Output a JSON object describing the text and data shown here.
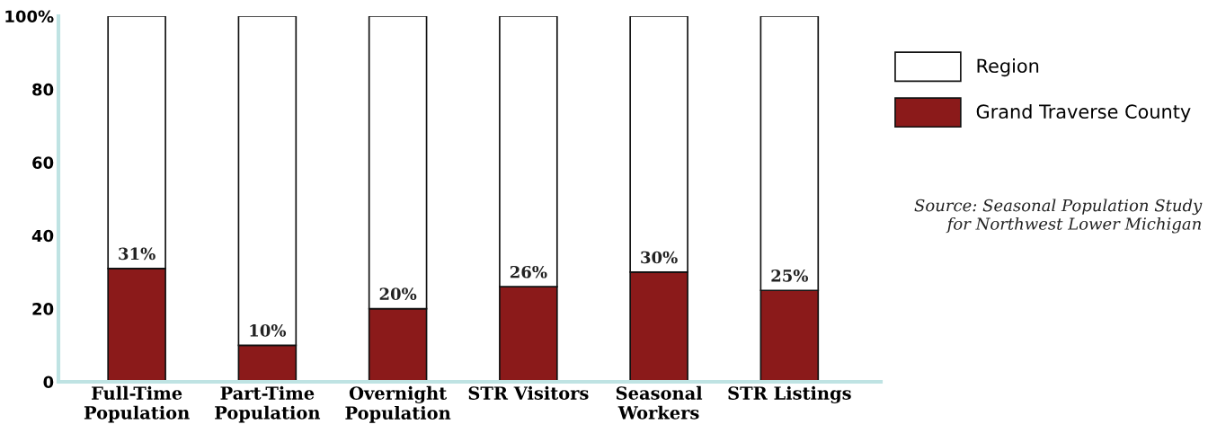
{
  "chart_data": {
    "type": "bar",
    "stacked": true,
    "categories": [
      "Full-Time\nPopulation",
      "Part-Time\nPopulation",
      "Overnight\nPopulation",
      "STR Visitors",
      "Seasonal\nWorkers",
      "STR Listings"
    ],
    "series": [
      {
        "name": "Grand Traverse County",
        "color": "#8b1a1a",
        "values": [
          31,
          10,
          20,
          26,
          30,
          25
        ],
        "value_labels": [
          "31%",
          "10%",
          "20%",
          "26%",
          "30%",
          "25%"
        ]
      },
      {
        "name": "Region",
        "color": "#ffffff",
        "values": [
          69,
          90,
          80,
          74,
          70,
          75
        ]
      }
    ],
    "ylim": [
      0,
      100
    ],
    "yticks": [
      0,
      20,
      40,
      60,
      80,
      {
        "value": 100,
        "label": "100%"
      }
    ],
    "grid": false,
    "legend": "top right",
    "annotations": [
      "Source: Seasonal Population Study\nfor Northwest Lower Michigan"
    ]
  }
}
